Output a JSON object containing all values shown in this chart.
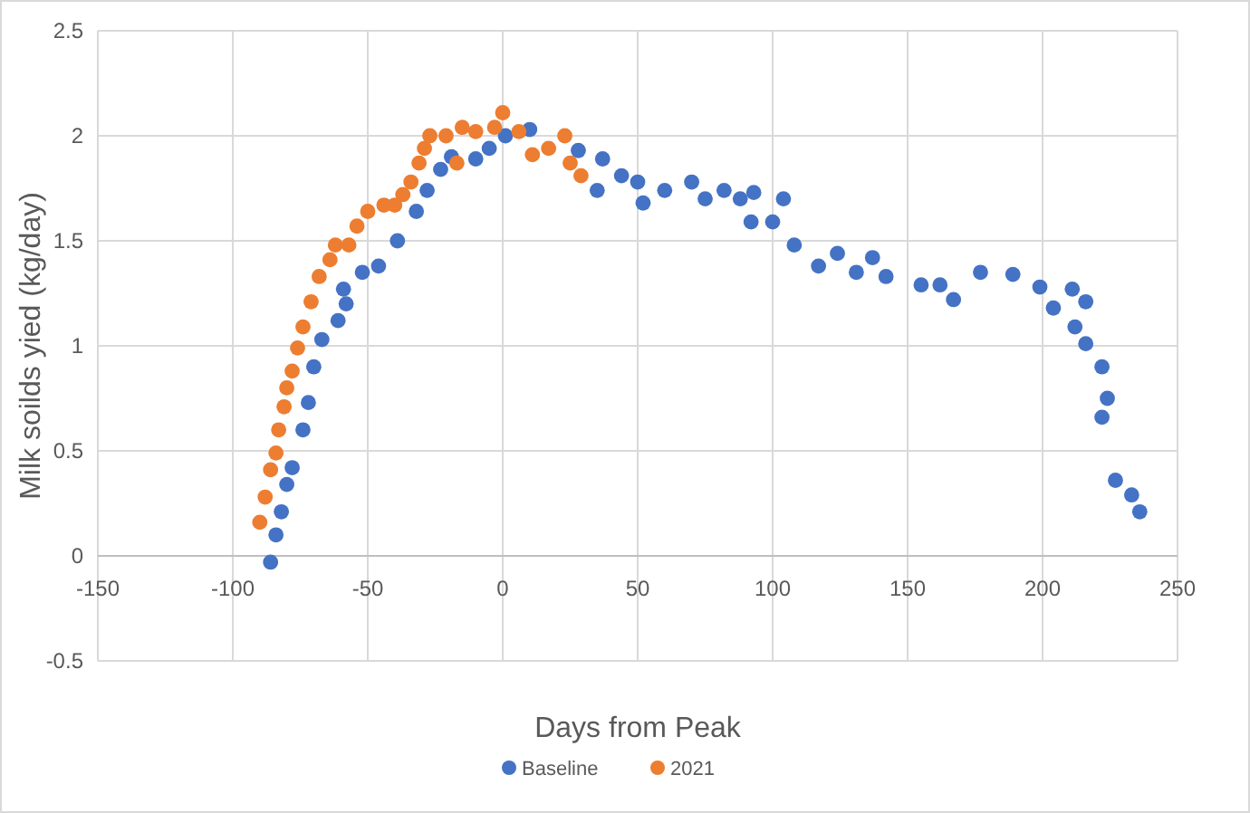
{
  "chart_data": {
    "type": "scatter",
    "xlabel": "Days from Peak",
    "ylabel": "Milk soilds yied (kg/day)",
    "xlim": [
      -150,
      250
    ],
    "ylim": [
      -0.5,
      2.5
    ],
    "xticks": [
      -150,
      -100,
      -50,
      0,
      50,
      100,
      150,
      200,
      250
    ],
    "yticks": [
      -0.5,
      0,
      0.5,
      1,
      1.5,
      2,
      2.5
    ],
    "grid": true,
    "legend": "bottom",
    "marker": "circle",
    "series": [
      {
        "name": "Baseline",
        "color": "#4472c4",
        "x": [
          -86,
          -84,
          -82,
          -80,
          -78,
          -74,
          -72,
          -70,
          -67,
          -61,
          -58,
          -59,
          -52,
          -46,
          -39,
          -32,
          -28,
          -23,
          -19,
          -10,
          -5,
          1,
          10,
          28,
          35,
          37,
          44,
          52,
          50,
          60,
          70,
          75,
          82,
          88,
          92,
          93,
          100,
          104,
          108,
          117,
          124,
          131,
          137,
          142,
          155,
          162,
          167,
          177,
          189,
          199,
          204,
          211,
          212,
          216,
          216,
          222,
          224,
          222,
          227,
          233,
          236
        ],
        "values": [
          -0.03,
          0.1,
          0.21,
          0.34,
          0.42,
          0.6,
          0.73,
          0.9,
          1.03,
          1.12,
          1.2,
          1.27,
          1.35,
          1.38,
          1.5,
          1.64,
          1.74,
          1.84,
          1.9,
          1.89,
          1.94,
          2.0,
          2.03,
          1.93,
          1.74,
          1.89,
          1.81,
          1.68,
          1.78,
          1.74,
          1.78,
          1.7,
          1.74,
          1.7,
          1.59,
          1.73,
          1.59,
          1.7,
          1.48,
          1.38,
          1.44,
          1.35,
          1.42,
          1.33,
          1.29,
          1.29,
          1.22,
          1.35,
          1.34,
          1.28,
          1.18,
          1.27,
          1.09,
          1.21,
          1.01,
          0.9,
          0.75,
          0.66,
          0.36,
          0.29,
          0.21
        ]
      },
      {
        "name": "2021",
        "color": "#ed7d31",
        "x": [
          -90,
          -88,
          -86,
          -84,
          -83,
          -81,
          -80,
          -78,
          -76,
          -74,
          -71,
          -68,
          -64,
          -62,
          -57,
          -54,
          -50,
          -44,
          -40,
          -37,
          -34,
          -31,
          -29,
          -27,
          -21,
          -17,
          -15,
          -10,
          -3,
          0,
          6,
          11,
          17,
          23,
          25,
          29
        ],
        "values": [
          0.16,
          0.28,
          0.41,
          0.49,
          0.6,
          0.71,
          0.8,
          0.88,
          0.99,
          1.09,
          1.21,
          1.33,
          1.41,
          1.48,
          1.48,
          1.57,
          1.64,
          1.67,
          1.67,
          1.72,
          1.78,
          1.87,
          1.94,
          2.0,
          2.0,
          1.87,
          2.04,
          2.02,
          2.04,
          2.11,
          2.02,
          1.91,
          1.94,
          2.0,
          1.87,
          1.81
        ]
      }
    ]
  }
}
